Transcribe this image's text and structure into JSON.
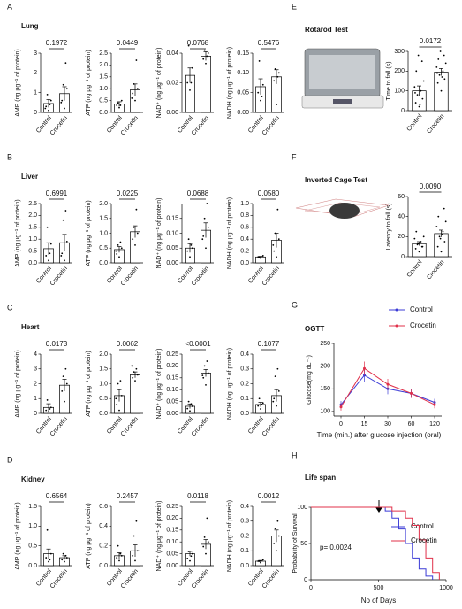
{
  "panels": [
    {
      "letter": "A",
      "title": "Lung"
    },
    {
      "letter": "B",
      "title": "Liver"
    },
    {
      "letter": "C",
      "title": "Heart"
    },
    {
      "letter": "D",
      "title": "Kidney"
    },
    {
      "letter": "E"
    },
    {
      "letter": "F"
    },
    {
      "letter": "G"
    },
    {
      "letter": "H"
    }
  ],
  "chart_data": [
    {
      "type": "dotbar",
      "ylabel": "AMP (ng μg⁻¹ of protein)",
      "categories": [
        "Control",
        "Crocetin"
      ],
      "values": [
        0.45,
        0.95
      ],
      "errors": [
        0.2,
        0.35
      ],
      "points": [
        [
          0.1,
          0.3,
          0.6,
          0.9,
          0.4,
          0.2
        ],
        [
          0.2,
          0.6,
          1.2,
          1.4,
          2.5,
          0.5
        ]
      ],
      "pvalue": "0.1972",
      "ylim": [
        0,
        3
      ],
      "yticks": [
        0,
        1,
        2,
        3
      ]
    },
    {
      "type": "dotbar",
      "ylabel": "ATP (ng μg⁻¹ of protein)",
      "categories": [
        "Control",
        "Crocetin"
      ],
      "values": [
        0.35,
        0.95
      ],
      "errors": [
        0.1,
        0.25
      ],
      "points": [
        [
          0.2,
          0.3,
          0.5,
          0.4,
          0.3
        ],
        [
          0.5,
          0.8,
          1.0,
          1.2,
          2.2,
          0.6
        ]
      ],
      "pvalue": "0.0449",
      "ylim": [
        0,
        2.5
      ],
      "yticks": [
        {
          "value": 0,
          "label": "0.0"
        },
        0.5,
        {
          "value": 1,
          "label": "1.0"
        },
        1.5,
        {
          "value": 2,
          "label": "2.0"
        },
        2.5
      ]
    },
    {
      "type": "dotbar",
      "ylabel": "NAD⁺ (ng μg⁻¹ of protein)",
      "categories": [
        "Control",
        "Crocetin"
      ],
      "values": [
        0.025,
        0.038
      ],
      "errors": [
        0.005,
        0.003
      ],
      "points": [
        [
          0.015,
          0.02,
          0.03,
          0.045,
          0.02
        ],
        [
          0.033,
          0.036,
          0.04,
          0.042,
          0.038
        ]
      ],
      "pvalue": "0.0768",
      "ylim": [
        0,
        0.04
      ],
      "yticks": [
        {
          "value": 0,
          "label": "0.00"
        },
        0.02,
        {
          "value": 0.04,
          "label": "0.04"
        }
      ]
    },
    {
      "type": "dotbar",
      "ylabel": "NADH (ng μg⁻¹ of protein)",
      "categories": [
        "Control",
        "Crocetin"
      ],
      "values": [
        0.065,
        0.09
      ],
      "errors": [
        0.02,
        0.018
      ],
      "points": [
        [
          0.03,
          0.05,
          0.07,
          0.13,
          0.04
        ],
        [
          0.02,
          0.08,
          0.1,
          0.11,
          0.09
        ]
      ],
      "pvalue": "0.5476",
      "ylim": [
        0,
        0.15
      ],
      "yticks": [
        {
          "value": 0,
          "label": "0.00"
        },
        0.05,
        {
          "value": 0.1,
          "label": "0.10"
        },
        0.15
      ]
    },
    {
      "type": "dotbar",
      "ylabel": "AMP (ng μg⁻¹ of protein)",
      "categories": [
        "Control",
        "Crocetin"
      ],
      "values": [
        0.6,
        0.85
      ],
      "errors": [
        0.25,
        0.35
      ],
      "points": [
        [
          0.1,
          0.3,
          0.8,
          1.5,
          0.4
        ],
        [
          0.1,
          0.4,
          0.9,
          1.8,
          2.2,
          0.3
        ]
      ],
      "pvalue": "0.6991",
      "ylim": [
        0,
        2.5
      ],
      "yticks": [
        {
          "value": 0,
          "label": "0.0"
        },
        0.5,
        {
          "value": 1,
          "label": "1.0"
        },
        1.5,
        {
          "value": 2,
          "label": "2.0"
        },
        2.5
      ]
    },
    {
      "type": "dotbar",
      "ylabel": "ATP (ng μg⁻¹ of protein)",
      "categories": [
        "Control",
        "Crocetin"
      ],
      "values": [
        0.45,
        1.05
      ],
      "errors": [
        0.1,
        0.2
      ],
      "points": [
        [
          0.2,
          0.3,
          0.5,
          0.6,
          0.7,
          0.4
        ],
        [
          0.6,
          0.8,
          1.0,
          1.2,
          1.8
        ]
      ],
      "pvalue": "0.0225",
      "ylim": [
        0,
        2
      ],
      "yticks": [
        {
          "value": 0,
          "label": "0.0"
        },
        0.5,
        {
          "value": 1,
          "label": "1.0"
        },
        1.5,
        {
          "value": 2,
          "label": "2.0"
        }
      ]
    },
    {
      "type": "dotbar",
      "ylabel": "NAD⁺ (ng μg⁻¹ of protein)",
      "categories": [
        "Control",
        "Crocetin"
      ],
      "values": [
        0.05,
        0.11
      ],
      "errors": [
        0.015,
        0.025
      ],
      "points": [
        [
          0.02,
          0.04,
          0.05,
          0.08,
          0.06
        ],
        [
          0.05,
          0.09,
          0.12,
          0.15,
          0.2,
          0.08
        ]
      ],
      "pvalue": "0.0688",
      "ylim": [
        0,
        0.2
      ],
      "yticks": [
        {
          "value": 0,
          "label": "0.00"
        },
        0.05,
        {
          "value": 0.1,
          "label": "0.10"
        },
        0.15
      ]
    },
    {
      "type": "dotbar",
      "ylabel": "NADH (ng μg⁻¹ of protein)",
      "categories": [
        "Control",
        "Crocetin"
      ],
      "values": [
        0.1,
        0.38
      ],
      "errors": [
        0.01,
        0.12
      ],
      "points": [
        [
          0.08,
          0.1,
          0.12,
          0.1
        ],
        [
          0.1,
          0.2,
          0.4,
          0.5,
          0.9,
          0.3
        ]
      ],
      "pvalue": "0.0580",
      "ylim": [
        0,
        1
      ],
      "yticks": [
        {
          "value": 0,
          "label": "0.0"
        },
        0.2,
        0.4,
        0.6,
        0.8,
        {
          "value": 1,
          "label": "1.0"
        }
      ]
    },
    {
      "type": "dotbar",
      "ylabel": "AMP (ng μg⁻¹ of protein)",
      "categories": [
        "Control",
        "Crocetin"
      ],
      "values": [
        0.4,
        1.9
      ],
      "errors": [
        0.25,
        0.4
      ],
      "points": [
        [
          0.1,
          0.2,
          0.4,
          0.9,
          0.3
        ],
        [
          0.8,
          1.5,
          2.0,
          2.5,
          3.0
        ]
      ],
      "pvalue": "0.0173",
      "ylim": [
        0,
        4
      ],
      "yticks": [
        0,
        1,
        2,
        3,
        4
      ]
    },
    {
      "type": "dotbar",
      "ylabel": "ATP (ng μg⁻¹ of protein)",
      "categories": [
        "Control",
        "Crocetin"
      ],
      "values": [
        0.6,
        1.3
      ],
      "errors": [
        0.2,
        0.1
      ],
      "points": [
        [
          0.1,
          0.3,
          0.6,
          1.0,
          1.1,
          0.5
        ],
        [
          1.1,
          1.2,
          1.3,
          1.4,
          1.5,
          1.6
        ]
      ],
      "pvalue": "0.0062",
      "ylim": [
        0,
        2
      ],
      "yticks": [
        {
          "value": 0,
          "label": "0.0"
        },
        0.5,
        {
          "value": 1,
          "label": "1.0"
        },
        1.5,
        {
          "value": 2,
          "label": "2.0"
        }
      ]
    },
    {
      "type": "dotbar",
      "ylabel": "NAD⁺ (ng μg⁻¹ of protein)",
      "categories": [
        "Control",
        "Crocetin"
      ],
      "values": [
        0.03,
        0.17
      ],
      "errors": [
        0.01,
        0.015
      ],
      "points": [
        [
          0.01,
          0.02,
          0.03,
          0.05,
          0.04
        ],
        [
          0.12,
          0.15,
          0.17,
          0.2,
          0.22,
          0.16
        ]
      ],
      "pvalue": "<0.0001",
      "ylim": [
        0,
        0.25
      ],
      "yticks": [
        {
          "value": 0,
          "label": "0.00"
        },
        0.05,
        {
          "value": 0.1,
          "label": "0.10"
        },
        0.15,
        {
          "value": 0.2,
          "label": "0.20"
        },
        0.25
      ]
    },
    {
      "type": "dotbar",
      "ylabel": "NADH (ng μg⁻¹ of protein)",
      "categories": [
        "Control",
        "Crocetin"
      ],
      "values": [
        0.06,
        0.12
      ],
      "errors": [
        0.015,
        0.04
      ],
      "points": [
        [
          0.03,
          0.05,
          0.07,
          0.1,
          0.06
        ],
        [
          0.05,
          0.1,
          0.15,
          0.25,
          0.3,
          0.08
        ]
      ],
      "pvalue": "0.1077",
      "ylim": [
        0,
        0.4
      ],
      "yticks": [
        {
          "value": 0,
          "label": "0.0"
        },
        0.1,
        0.2,
        0.3,
        0.4
      ]
    },
    {
      "type": "dotbar",
      "ylabel": "AMP (ng μg⁻¹ of protein)",
      "categories": [
        "Control",
        "Crocetin"
      ],
      "values": [
        0.3,
        0.2
      ],
      "errors": [
        0.12,
        0.05
      ],
      "points": [
        [
          0.1,
          0.2,
          0.3,
          0.9,
          0.15
        ],
        [
          0.1,
          0.15,
          0.2,
          0.3,
          0.25
        ]
      ],
      "pvalue": "0.6564",
      "ylim": [
        0,
        1.5
      ],
      "yticks": [
        {
          "value": 0,
          "label": "0.0"
        },
        0.5,
        {
          "value": 1,
          "label": "1.0"
        },
        1.5
      ]
    },
    {
      "type": "dotbar",
      "ylabel": "ATP (ng μg⁻¹ of protein)",
      "categories": [
        "Control",
        "Crocetin"
      ],
      "values": [
        0.1,
        0.15
      ],
      "errors": [
        0.03,
        0.06
      ],
      "points": [
        [
          0.05,
          0.08,
          0.1,
          0.2,
          0.12
        ],
        [
          0.05,
          0.1,
          0.15,
          0.3,
          0.45
        ]
      ],
      "pvalue": "0.2457",
      "ylim": [
        0,
        0.6
      ],
      "yticks": [
        {
          "value": 0,
          "label": "0.0"
        },
        0.2,
        0.4,
        0.6
      ]
    },
    {
      "type": "dotbar",
      "ylabel": "NAD⁺ (ng μg⁻¹ of protein)",
      "categories": [
        "Control",
        "Crocetin"
      ],
      "values": [
        0.05,
        0.09
      ],
      "errors": [
        0.01,
        0.02
      ],
      "points": [
        [
          0.02,
          0.03,
          0.05,
          0.06,
          0.04
        ],
        [
          0.05,
          0.08,
          0.1,
          0.12,
          0.2
        ]
      ],
      "pvalue": "0.0118",
      "ylim": [
        0,
        0.25
      ],
      "yticks": [
        {
          "value": 0,
          "label": "0.00"
        },
        0.05,
        {
          "value": 0.1,
          "label": "0.10"
        },
        0.15,
        {
          "value": 0.2,
          "label": "0.20"
        },
        0.25
      ]
    },
    {
      "type": "dotbar",
      "ylabel": "NADH (ng μg⁻¹ of protein)",
      "categories": [
        "Control",
        "Crocetin"
      ],
      "values": [
        0.03,
        0.2
      ],
      "errors": [
        0.005,
        0.04
      ],
      "points": [
        [
          0.02,
          0.03,
          0.04,
          0.03
        ],
        [
          0.1,
          0.15,
          0.2,
          0.25,
          0.3
        ]
      ],
      "pvalue": "0.0012",
      "ylim": [
        0,
        0.4
      ],
      "yticks": [
        {
          "value": 0,
          "label": "0.0"
        },
        0.1,
        0.2,
        0.3,
        0.4
      ]
    },
    {
      "type": "dotbar",
      "title": "Rotarod Test",
      "ylabel": "Time to fall (s)",
      "categories": [
        "Control",
        "Crocetin"
      ],
      "values": [
        100,
        195
      ],
      "errors": [
        25,
        18
      ],
      "points": [
        [
          20,
          40,
          60,
          80,
          100,
          120,
          150,
          200,
          250,
          280,
          30,
          90
        ],
        [
          100,
          140,
          160,
          180,
          200,
          220,
          240,
          260,
          280,
          300,
          170,
          190
        ]
      ],
      "pvalue": "0.0172",
      "ylim": [
        0,
        300
      ],
      "yticks": [
        0,
        100,
        200,
        300
      ]
    },
    {
      "type": "dotbar",
      "title": "Inverted Cage Test",
      "ylabel": "Latency to fall (s)",
      "categories": [
        "Control",
        "Crocetin"
      ],
      "values": [
        13,
        23
      ],
      "errors": [
        2,
        3.5
      ],
      "points": [
        [
          5,
          8,
          10,
          12,
          15,
          18,
          20,
          25,
          10,
          13
        ],
        [
          5,
          10,
          15,
          20,
          25,
          30,
          35,
          40,
          48,
          18,
          22
        ]
      ],
      "pvalue": "0.0090",
      "ylim": [
        0,
        60
      ],
      "yticks": [
        0,
        20,
        40,
        60
      ]
    },
    {
      "type": "line",
      "title": "OGTT",
      "ylabel": "Glucose(mg dL⁻¹)",
      "xlabel": "Time (min.) after glucose injection (oral)",
      "categories": [
        "0",
        "15",
        "30",
        "60",
        "120"
      ],
      "series": [
        {
          "name": "Control",
          "color": "#3b3bd6",
          "values": [
            115,
            180,
            150,
            140,
            120
          ],
          "errors": [
            8,
            15,
            12,
            10,
            8
          ]
        },
        {
          "name": "Crocetin",
          "color": "#e0304a",
          "values": [
            110,
            195,
            160,
            140,
            115
          ],
          "errors": [
            8,
            15,
            12,
            10,
            8
          ]
        }
      ],
      "ylim": [
        90,
        250
      ],
      "yticks": [
        100,
        150,
        200,
        250
      ],
      "legend": "upper right"
    },
    {
      "type": "step",
      "title": "Life span",
      "ylabel": "Probability of Survival",
      "xlabel": "No of Days",
      "annotation": "p= 0.0024",
      "series": [
        {
          "name": "Control",
          "color": "#3b3bd6",
          "x": [
            0,
            550,
            600,
            650,
            700,
            750,
            800,
            850,
            900
          ],
          "values": [
            100,
            95,
            85,
            70,
            50,
            30,
            15,
            5,
            0
          ]
        },
        {
          "name": "Crocetin",
          "color": "#e0304a",
          "x": [
            0,
            600,
            700,
            750,
            800,
            850,
            900,
            950
          ],
          "values": [
            100,
            95,
            85,
            75,
            55,
            30,
            10,
            0
          ]
        }
      ],
      "xlim": [
        0,
        1000
      ],
      "xticks": [
        0,
        500,
        1000
      ],
      "ylim": [
        0,
        100
      ],
      "yticks": [
        0,
        50,
        100
      ],
      "legend": "upper right"
    }
  ]
}
